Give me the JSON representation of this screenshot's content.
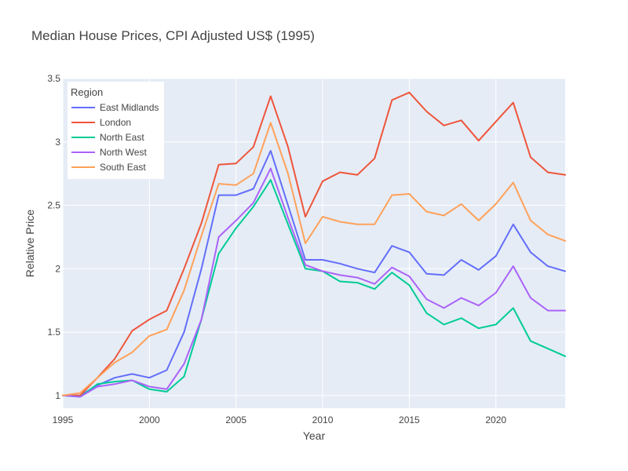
{
  "chart_data": {
    "type": "line",
    "title": "Median House Prices, CPI Adjusted US$ (1995)",
    "xlabel": "Year",
    "ylabel": "Relative Price",
    "xlim": [
      1995,
      2024
    ],
    "ylim": [
      0.9,
      3.5
    ],
    "x_ticks": [
      1995,
      2000,
      2005,
      2010,
      2015,
      2020
    ],
    "y_ticks": [
      1,
      1.5,
      2,
      2.5,
      3,
      3.5
    ],
    "y_tick_labels": [
      "1",
      "1.5",
      "2",
      "2.5",
      "3",
      "3.5"
    ],
    "grid": true,
    "plot_background": "#e5ecf6",
    "legend": {
      "title": "Region",
      "position": "top-left"
    },
    "x": [
      1995,
      1996,
      1997,
      1998,
      1999,
      2000,
      2001,
      2002,
      2003,
      2004,
      2005,
      2006,
      2007,
      2008,
      2009,
      2010,
      2011,
      2012,
      2013,
      2014,
      2015,
      2016,
      2017,
      2018,
      2019,
      2020,
      2021,
      2022,
      2023,
      2024
    ],
    "series": [
      {
        "name": "East Midlands",
        "color": "#636efa",
        "values": [
          1.0,
          1.0,
          1.08,
          1.14,
          1.17,
          1.14,
          1.2,
          1.5,
          2.0,
          2.58,
          2.58,
          2.63,
          2.93,
          2.5,
          2.07,
          2.07,
          2.04,
          2.0,
          1.97,
          2.18,
          2.13,
          1.96,
          1.95,
          2.07,
          1.99,
          2.1,
          2.35,
          2.13,
          2.02,
          1.98
        ]
      },
      {
        "name": "London",
        "color": "#ef553b",
        "values": [
          1.0,
          1.0,
          1.14,
          1.29,
          1.51,
          1.6,
          1.67,
          2.0,
          2.36,
          2.82,
          2.83,
          2.96,
          3.36,
          2.96,
          2.41,
          2.69,
          2.76,
          2.74,
          2.87,
          3.33,
          3.39,
          3.24,
          3.13,
          3.17,
          3.01,
          3.16,
          3.31,
          2.88,
          2.76,
          2.74
        ]
      },
      {
        "name": "North East",
        "color": "#00cc96",
        "values": [
          1.0,
          0.99,
          1.09,
          1.11,
          1.12,
          1.05,
          1.03,
          1.15,
          1.6,
          2.12,
          2.32,
          2.49,
          2.7,
          2.35,
          2.0,
          1.98,
          1.9,
          1.89,
          1.84,
          1.97,
          1.87,
          1.65,
          1.56,
          1.61,
          1.53,
          1.56,
          1.69,
          1.43,
          1.37,
          1.31
        ]
      },
      {
        "name": "North West",
        "color": "#ab63fa",
        "values": [
          1.0,
          0.99,
          1.07,
          1.09,
          1.12,
          1.07,
          1.05,
          1.25,
          1.6,
          2.25,
          2.38,
          2.52,
          2.79,
          2.4,
          2.03,
          1.98,
          1.95,
          1.93,
          1.88,
          2.01,
          1.94,
          1.76,
          1.69,
          1.77,
          1.71,
          1.81,
          2.02,
          1.77,
          1.67,
          1.67
        ]
      },
      {
        "name": "South East",
        "color": "#ffa15a",
        "values": [
          1.0,
          1.02,
          1.14,
          1.26,
          1.34,
          1.47,
          1.52,
          1.83,
          2.26,
          2.67,
          2.66,
          2.75,
          3.15,
          2.75,
          2.2,
          2.41,
          2.37,
          2.35,
          2.35,
          2.58,
          2.59,
          2.45,
          2.42,
          2.51,
          2.38,
          2.51,
          2.68,
          2.38,
          2.27,
          2.22
        ]
      }
    ]
  }
}
